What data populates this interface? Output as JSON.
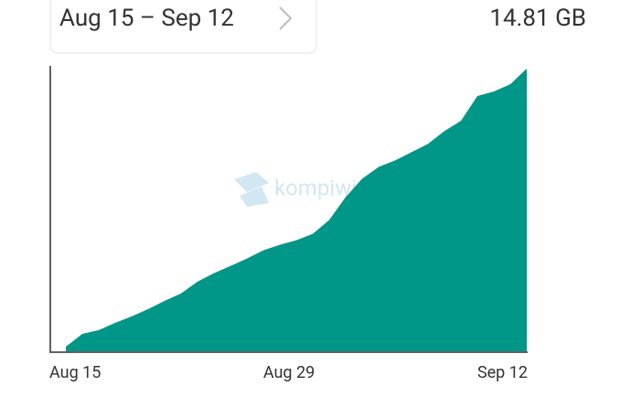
{
  "header": {
    "date_range": "Aug 15 – Sep 12",
    "total": "14.81 GB"
  },
  "watermark": "kompiwin",
  "chart_data": {
    "type": "area",
    "color": "#009688",
    "categories": [
      "Aug 15",
      null,
      null,
      null,
      null,
      null,
      null,
      null,
      null,
      null,
      null,
      null,
      null,
      null,
      "Aug 29",
      null,
      null,
      null,
      null,
      null,
      null,
      null,
      null,
      null,
      null,
      null,
      null,
      null,
      "Sep 12"
    ],
    "values": [
      0.24,
      0.91,
      1.11,
      1.49,
      1.83,
      2.21,
      2.64,
      3.03,
      3.65,
      4.09,
      4.47,
      4.86,
      5.29,
      5.58,
      5.82,
      6.15,
      6.88,
      8.08,
      9.04,
      9.66,
      10.0,
      10.43,
      10.87,
      11.54,
      12.07,
      13.37,
      13.61,
      13.99,
      14.81
    ],
    "ylim": [
      0,
      14.81
    ]
  }
}
